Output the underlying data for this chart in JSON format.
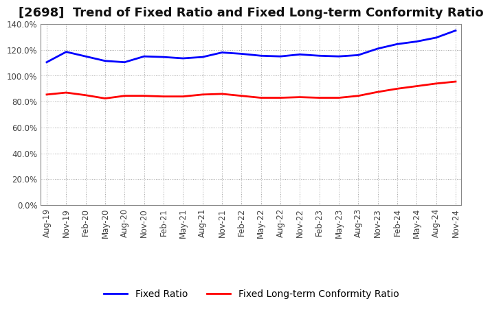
{
  "title": "[2698]  Trend of Fixed Ratio and Fixed Long-term Conformity Ratio",
  "x_labels": [
    "Aug-19",
    "Nov-19",
    "Feb-20",
    "May-20",
    "Aug-20",
    "Nov-20",
    "Feb-21",
    "May-21",
    "Aug-21",
    "Nov-21",
    "Feb-22",
    "May-22",
    "Aug-22",
    "Nov-22",
    "Feb-23",
    "May-23",
    "Aug-23",
    "Nov-23",
    "Feb-24",
    "May-24",
    "Aug-24",
    "Nov-24"
  ],
  "fixed_ratio": [
    110.5,
    118.5,
    115.0,
    111.5,
    110.5,
    115.0,
    114.5,
    113.5,
    114.5,
    118.0,
    117.0,
    115.5,
    115.0,
    116.5,
    115.5,
    115.0,
    116.0,
    121.0,
    124.5,
    126.5,
    129.5,
    135.0
  ],
  "fixed_lt_ratio": [
    85.5,
    87.0,
    85.0,
    82.5,
    84.5,
    84.5,
    84.0,
    84.0,
    85.5,
    86.0,
    84.5,
    83.0,
    83.0,
    83.5,
    83.0,
    83.0,
    84.5,
    87.5,
    90.0,
    92.0,
    94.0,
    95.5
  ],
  "fixed_ratio_color": "#0000FF",
  "fixed_lt_ratio_color": "#FF0000",
  "ylim": [
    0,
    140
  ],
  "yticks": [
    0,
    20,
    40,
    60,
    80,
    100,
    120,
    140
  ],
  "background_color": "#FFFFFF",
  "plot_bg_color": "#FFFFFF",
  "grid_color": "#999999",
  "line_width": 2.0,
  "title_fontsize": 13,
  "tick_fontsize": 8.5,
  "legend_fontsize": 10
}
